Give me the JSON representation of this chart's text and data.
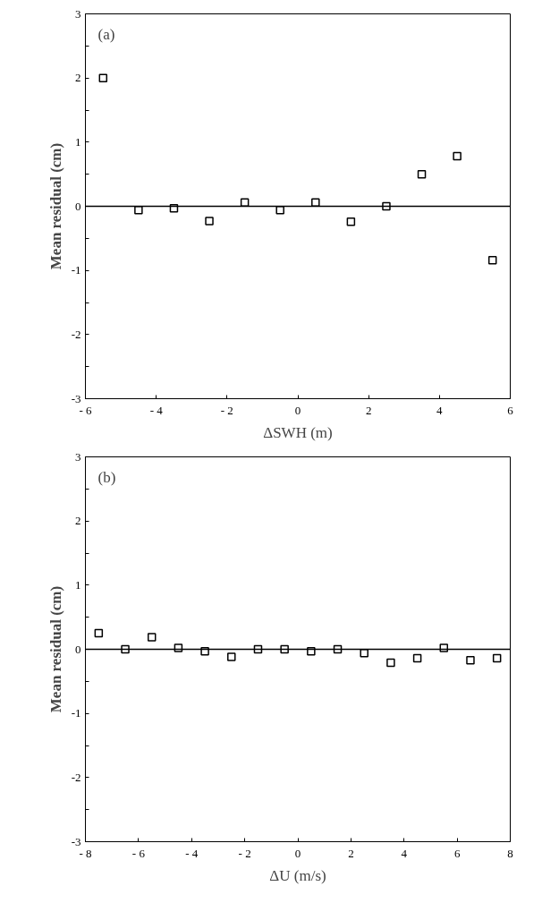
{
  "chart_data": [
    {
      "type": "scatter",
      "xlabel": "ΔSWH (m)",
      "ylabel": "Mean residual (cm)",
      "annotations": [
        "(a)"
      ],
      "marker": "square",
      "grid": false,
      "x": [
        -5.5,
        -4.5,
        -3.5,
        -2.5,
        -1.5,
        -0.5,
        0.5,
        1.5,
        2.5,
        3.5,
        4.5,
        5.5
      ],
      "series": [
        {
          "color": "#000000",
          "values": [
            2.0,
            -0.06,
            -0.03,
            -0.23,
            0.06,
            -0.06,
            0.06,
            -0.24,
            0.0,
            0.5,
            0.78,
            -0.84
          ]
        }
      ],
      "xlim": [
        -6,
        6
      ],
      "xticks": [
        {
          "value": -6,
          "label": "- 6"
        },
        {
          "value": -4,
          "label": "- 4"
        },
        {
          "value": -2,
          "label": "- 2"
        },
        0,
        2,
        4,
        6
      ],
      "ylim": [
        -3,
        3
      ],
      "yticks": [
        -3,
        {
          "value": -2.5,
          "label": null
        },
        -2,
        {
          "value": -1.5,
          "label": null
        },
        -1,
        {
          "value": -0.5,
          "label": null
        },
        0,
        {
          "value": 0.5,
          "label": null
        },
        1,
        {
          "value": 1.5,
          "label": null
        },
        2,
        {
          "value": 2.5,
          "label": null
        },
        3
      ],
      "ref_lines": [
        {
          "axis": "y",
          "value": 0,
          "color": "#000000"
        }
      ]
    },
    {
      "type": "scatter",
      "xlabel": "ΔU (m/s)",
      "ylabel": "Mean residual (cm)",
      "annotations": [
        "(b)"
      ],
      "marker": "square",
      "grid": false,
      "x": [
        -7.5,
        -6.5,
        -5.5,
        -4.5,
        -3.5,
        -2.5,
        -1.5,
        -0.5,
        0.5,
        1.5,
        2.5,
        3.5,
        4.5,
        5.5,
        6.5,
        7.5
      ],
      "series": [
        {
          "color": "#000000",
          "values": [
            0.25,
            0.0,
            0.19,
            0.02,
            -0.03,
            -0.12,
            0.0,
            0.0,
            -0.03,
            0.0,
            -0.06,
            -0.21,
            -0.14,
            0.02,
            -0.17,
            -0.14
          ]
        }
      ],
      "xlim": [
        -8,
        8
      ],
      "xticks": [
        {
          "value": -8,
          "label": "- 8"
        },
        {
          "value": -6,
          "label": "- 6"
        },
        {
          "value": -4,
          "label": "- 4"
        },
        {
          "value": -2,
          "label": "- 2"
        },
        0,
        2,
        4,
        6,
        8
      ],
      "ylim": [
        -3,
        3
      ],
      "yticks": [
        -3,
        {
          "value": -2.5,
          "label": null
        },
        -2,
        {
          "value": -1.5,
          "label": null
        },
        -1,
        {
          "value": -0.5,
          "label": null
        },
        0,
        {
          "value": 0.5,
          "label": null
        },
        1,
        {
          "value": 1.5,
          "label": null
        },
        2,
        {
          "value": 2.5,
          "label": null
        },
        3
      ],
      "ref_lines": [
        {
          "axis": "y",
          "value": 0,
          "color": "#000000"
        }
      ]
    }
  ]
}
